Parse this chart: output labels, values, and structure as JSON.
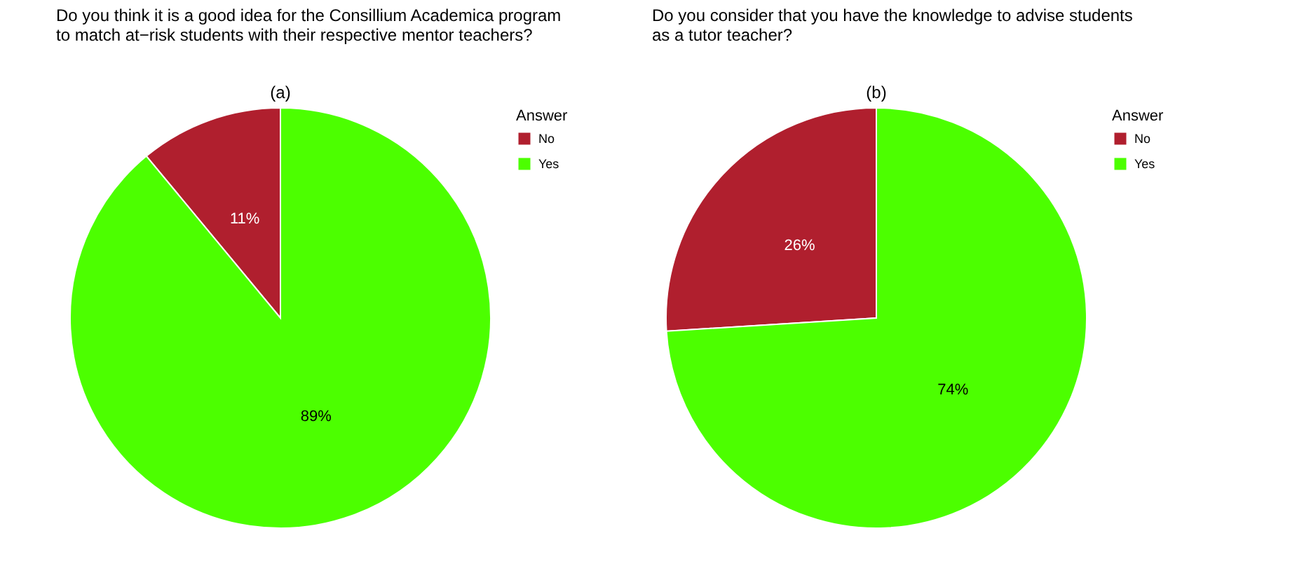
{
  "chart_data": [
    {
      "type": "pie",
      "title": "Do you think it is a good idea for the Consillium Academica program\n to match at−risk students with their respective mentor teachers?",
      "subtitle": "(a)",
      "legend_title": "Answer",
      "categories": [
        "No",
        "Yes"
      ],
      "values": [
        11,
        89
      ],
      "colors": [
        "#b01f2e",
        "#4cff00"
      ],
      "value_labels": [
        "11%",
        "89%"
      ],
      "legend": "right"
    },
    {
      "type": "pie",
      "title": "Do you consider that you have the knowledge to advise students\n as a tutor teacher?",
      "subtitle": "(b)",
      "legend_title": "Answer",
      "categories": [
        "No",
        "Yes"
      ],
      "values": [
        26,
        74
      ],
      "colors": [
        "#b01f2e",
        "#4cff00"
      ],
      "value_labels": [
        "26%",
        "74%"
      ],
      "legend": "right"
    }
  ]
}
